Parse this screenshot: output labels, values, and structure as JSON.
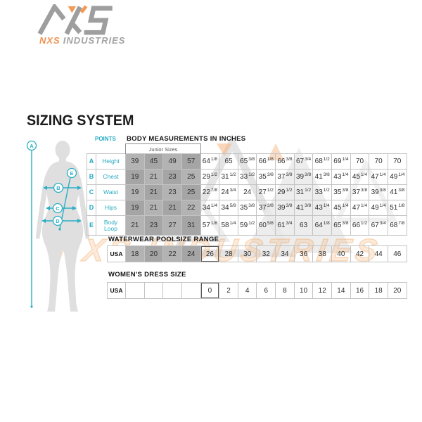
{
  "page_title": "SIZING SYSTEM",
  "logo": {
    "name_orange": "NXS",
    "name_gray": "INDUSTRIES"
  },
  "watermark": {
    "text": "NXS INDUSTRIES"
  },
  "figure": {
    "point_labels": [
      "A",
      "B",
      "C",
      "D",
      "E"
    ]
  },
  "colors": {
    "accent_cyan": "#2AAFC4",
    "accent_orange": "#F2994A",
    "junior_gray_light": "#B3B3B3",
    "junior_gray_dark": "#A5A5A5",
    "silhouette_gray": "#DFDFE0"
  },
  "chart_data": [
    {
      "type": "table",
      "title": "BODY MEASUREMENTS IN INCHES",
      "points_label": "POINTS",
      "junior_label": "Junior Sizes",
      "junior_columns": 4,
      "rows": [
        {
          "point": "A",
          "label": "Height",
          "values": [
            "39",
            "45",
            "49",
            "57",
            "64 1/8",
            "65",
            "65 3/8",
            "66 1/8",
            "66 3/8",
            "67 3/4",
            "68 1/2",
            "69 1/4",
            "70",
            "70",
            "70"
          ]
        },
        {
          "point": "B",
          "label": "Chest",
          "values": [
            "19",
            "21",
            "23",
            "25",
            "29 1/2",
            "31 1/2",
            "33 1/2",
            "35 3/8",
            "37 3/8",
            "39 3/8",
            "41 3/8",
            "43 1/4",
            "45 1/4",
            "47 1/4",
            "49 1/4"
          ]
        },
        {
          "point": "C",
          "label": "Waist",
          "values": [
            "19",
            "21",
            "23",
            "25",
            "22 7/8",
            "24 3/4",
            "24",
            "27 1/2",
            "29 1/2",
            "31 1/2",
            "33 1/2",
            "35 3/8",
            "37 3/8",
            "39 3/8",
            "41 3/8"
          ]
        },
        {
          "point": "D",
          "label": "Hips",
          "values": [
            "19",
            "21",
            "21",
            "22",
            "34 1/4",
            "34 5/8",
            "35 3/8",
            "37 3/8",
            "39 3/8",
            "41 3/8",
            "43 1/4",
            "45 1/4",
            "47 1/4",
            "49 1/4",
            "51 1/8"
          ]
        },
        {
          "point": "E",
          "label": "Body Loop",
          "values": [
            "21",
            "23",
            "27",
            "31",
            "57 1/8",
            "58 1/4",
            "59 1/2",
            "60 5/8",
            "61 3/4",
            "63",
            "64 1/8",
            "65 3/8",
            "66 1/2",
            "67 3/4",
            "68 7/8"
          ]
        }
      ]
    },
    {
      "type": "table",
      "title": "WATERWEAR POOLSIZE RANGE",
      "region_label": "USA",
      "junior_columns": 4,
      "sizes": [
        "18",
        "20",
        "22",
        "24",
        "26",
        "28",
        "30",
        "32",
        "34",
        "36",
        "38",
        "40",
        "42",
        "44",
        "46"
      ]
    },
    {
      "type": "table",
      "title": "WOMEN'S DRESS SIZE",
      "region_label": "USA",
      "sizes": [
        "",
        "",
        "",
        "",
        "0",
        "2",
        "4",
        "6",
        "8",
        "10",
        "12",
        "14",
        "16",
        "18",
        "20"
      ]
    }
  ]
}
